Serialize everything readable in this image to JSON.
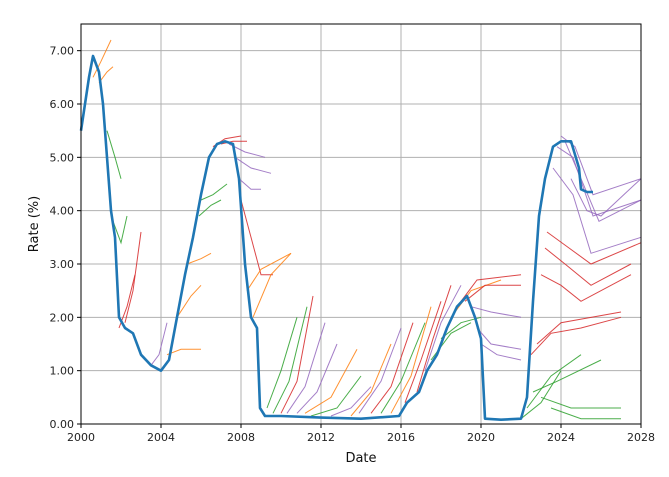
{
  "chart_data": {
    "type": "line",
    "title": "",
    "xlabel": "Date",
    "ylabel": "Rate (%)",
    "xlim": [
      2000,
      2028
    ],
    "ylim": [
      0,
      7.5
    ],
    "grid": true,
    "x_ticks": [
      2000,
      2004,
      2008,
      2012,
      2016,
      2020,
      2024,
      2028
    ],
    "x_tick_labels": [
      "2000",
      "2004",
      "2008",
      "2012",
      "2016",
      "2020",
      "2024",
      "2028"
    ],
    "y_ticks": [
      0,
      1,
      2,
      3,
      4,
      5,
      6,
      7
    ],
    "y_tick_labels": [
      "0.00",
      "1.00",
      "2.00",
      "3.00",
      "4.00",
      "5.00",
      "6.00",
      "7.00"
    ],
    "colors": {
      "main": "#1f77b4",
      "orange": "#ff7f0e",
      "green": "#2ca02c",
      "red": "#d62728",
      "purple": "#9467bd",
      "grid": "#b0b0b0"
    },
    "main_series": {
      "name": "Rate",
      "points": [
        [
          2000.0,
          5.5
        ],
        [
          2000.2,
          6.0
        ],
        [
          2000.4,
          6.5
        ],
        [
          2000.6,
          6.9
        ],
        [
          2000.9,
          6.6
        ],
        [
          2001.1,
          6.0
        ],
        [
          2001.3,
          5.0
        ],
        [
          2001.5,
          4.0
        ],
        [
          2001.7,
          3.5
        ],
        [
          2001.9,
          2.0
        ],
        [
          2002.2,
          1.8
        ],
        [
          2002.6,
          1.7
        ],
        [
          2003.0,
          1.3
        ],
        [
          2003.5,
          1.1
        ],
        [
          2004.0,
          1.0
        ],
        [
          2004.4,
          1.2
        ],
        [
          2004.8,
          2.0
        ],
        [
          2005.2,
          2.8
        ],
        [
          2005.6,
          3.5
        ],
        [
          2006.0,
          4.3
        ],
        [
          2006.4,
          5.0
        ],
        [
          2006.8,
          5.25
        ],
        [
          2007.2,
          5.3
        ],
        [
          2007.6,
          5.25
        ],
        [
          2007.9,
          4.6
        ],
        [
          2008.2,
          3.0
        ],
        [
          2008.5,
          2.0
        ],
        [
          2008.8,
          1.8
        ],
        [
          2008.95,
          0.3
        ],
        [
          2009.2,
          0.15
        ],
        [
          2010.0,
          0.15
        ],
        [
          2012.0,
          0.12
        ],
        [
          2014.0,
          0.1
        ],
        [
          2015.9,
          0.15
        ],
        [
          2016.3,
          0.4
        ],
        [
          2016.9,
          0.6
        ],
        [
          2017.3,
          1.0
        ],
        [
          2017.8,
          1.3
        ],
        [
          2018.3,
          1.8
        ],
        [
          2018.8,
          2.2
        ],
        [
          2019.3,
          2.4
        ],
        [
          2019.7,
          2.0
        ],
        [
          2020.0,
          1.6
        ],
        [
          2020.2,
          0.1
        ],
        [
          2021.0,
          0.08
        ],
        [
          2022.0,
          0.1
        ],
        [
          2022.3,
          0.5
        ],
        [
          2022.6,
          2.3
        ],
        [
          2022.9,
          3.9
        ],
        [
          2023.2,
          4.6
        ],
        [
          2023.6,
          5.2
        ],
        [
          2024.0,
          5.3
        ],
        [
          2024.5,
          5.3
        ],
        [
          2024.9,
          4.8
        ],
        [
          2025.0,
          4.4
        ],
        [
          2025.3,
          4.35
        ],
        [
          2025.6,
          4.35
        ]
      ]
    },
    "forecast_series": [
      {
        "color": "orange",
        "points": [
          [
            2000.6,
            6.5
          ],
          [
            2001.0,
            6.8
          ],
          [
            2001.5,
            7.2
          ]
        ]
      },
      {
        "color": "orange",
        "points": [
          [
            2000.9,
            6.4
          ],
          [
            2001.3,
            6.6
          ],
          [
            2001.6,
            6.7
          ]
        ]
      },
      {
        "color": "green",
        "points": [
          [
            2001.3,
            5.5
          ],
          [
            2001.7,
            5.0
          ],
          [
            2002.0,
            4.6
          ]
        ]
      },
      {
        "color": "green",
        "points": [
          [
            2001.6,
            3.8
          ],
          [
            2002.0,
            3.4
          ],
          [
            2002.3,
            3.9
          ]
        ]
      },
      {
        "color": "red",
        "points": [
          [
            2001.9,
            1.8
          ],
          [
            2002.3,
            2.2
          ],
          [
            2002.7,
            2.8
          ]
        ]
      },
      {
        "color": "red",
        "points": [
          [
            2002.2,
            1.9
          ],
          [
            2002.6,
            2.5
          ],
          [
            2003.0,
            3.6
          ]
        ]
      },
      {
        "color": "purple",
        "points": [
          [
            2003.5,
            1.1
          ],
          [
            2003.9,
            1.3
          ],
          [
            2004.3,
            1.9
          ]
        ]
      },
      {
        "color": "orange",
        "points": [
          [
            2004.3,
            1.3
          ],
          [
            2005.0,
            1.4
          ],
          [
            2006.0,
            1.4
          ]
        ]
      },
      {
        "color": "orange",
        "points": [
          [
            2004.8,
            2.0
          ],
          [
            2005.5,
            2.4
          ],
          [
            2006.0,
            2.6
          ]
        ]
      },
      {
        "color": "orange",
        "points": [
          [
            2005.3,
            3.0
          ],
          [
            2006.0,
            3.1
          ],
          [
            2006.5,
            3.2
          ]
        ]
      },
      {
        "color": "green",
        "points": [
          [
            2005.9,
            3.9
          ],
          [
            2006.5,
            4.1
          ],
          [
            2007.0,
            4.2
          ]
        ]
      },
      {
        "color": "green",
        "points": [
          [
            2006.0,
            4.2
          ],
          [
            2006.6,
            4.3
          ],
          [
            2007.3,
            4.5
          ]
        ]
      },
      {
        "color": "red",
        "points": [
          [
            2006.6,
            5.2
          ],
          [
            2007.2,
            5.35
          ],
          [
            2008.0,
            5.4
          ]
        ]
      },
      {
        "color": "red",
        "points": [
          [
            2007.0,
            5.25
          ],
          [
            2007.6,
            5.3
          ],
          [
            2008.3,
            5.3
          ]
        ]
      },
      {
        "color": "purple",
        "points": [
          [
            2007.4,
            5.25
          ],
          [
            2008.2,
            5.1
          ],
          [
            2009.2,
            5.0
          ]
        ]
      },
      {
        "color": "purple",
        "points": [
          [
            2007.7,
            5.0
          ],
          [
            2008.5,
            4.8
          ],
          [
            2009.5,
            4.7
          ]
        ]
      },
      {
        "color": "purple",
        "points": [
          [
            2007.9,
            4.6
          ],
          [
            2008.5,
            4.4
          ],
          [
            2009.0,
            4.4
          ]
        ]
      },
      {
        "color": "red",
        "points": [
          [
            2008.0,
            4.2
          ],
          [
            2008.5,
            3.5
          ],
          [
            2009.0,
            2.8
          ],
          [
            2009.6,
            2.8
          ]
        ]
      },
      {
        "color": "orange",
        "points": [
          [
            2008.3,
            2.5
          ],
          [
            2009.0,
            2.9
          ],
          [
            2010.5,
            3.2
          ]
        ]
      },
      {
        "color": "orange",
        "points": [
          [
            2008.6,
            2.0
          ],
          [
            2009.5,
            2.8
          ],
          [
            2010.5,
            3.2
          ]
        ]
      },
      {
        "color": "green",
        "points": [
          [
            2009.3,
            0.3
          ],
          [
            2010.0,
            1.0
          ],
          [
            2010.8,
            2.0
          ]
        ]
      },
      {
        "color": "green",
        "points": [
          [
            2009.6,
            0.2
          ],
          [
            2010.4,
            0.8
          ],
          [
            2011.3,
            2.2
          ]
        ]
      },
      {
        "color": "red",
        "points": [
          [
            2010.0,
            0.2
          ],
          [
            2010.8,
            0.8
          ],
          [
            2011.6,
            2.4
          ]
        ]
      },
      {
        "color": "purple",
        "points": [
          [
            2010.3,
            0.2
          ],
          [
            2011.2,
            0.7
          ],
          [
            2012.2,
            1.9
          ]
        ]
      },
      {
        "color": "purple",
        "points": [
          [
            2010.8,
            0.2
          ],
          [
            2011.8,
            0.6
          ],
          [
            2012.8,
            1.5
          ]
        ]
      },
      {
        "color": "orange",
        "points": [
          [
            2011.2,
            0.2
          ],
          [
            2012.5,
            0.5
          ],
          [
            2013.8,
            1.4
          ]
        ]
      },
      {
        "color": "green",
        "points": [
          [
            2011.5,
            0.15
          ],
          [
            2012.8,
            0.3
          ],
          [
            2014.0,
            0.9
          ]
        ]
      },
      {
        "color": "purple",
        "points": [
          [
            2012.5,
            0.15
          ],
          [
            2013.5,
            0.3
          ],
          [
            2014.5,
            0.7
          ]
        ]
      },
      {
        "color": "orange",
        "points": [
          [
            2013.5,
            0.15
          ],
          [
            2014.5,
            0.6
          ],
          [
            2015.5,
            1.5
          ]
        ]
      },
      {
        "color": "purple",
        "points": [
          [
            2013.9,
            0.2
          ],
          [
            2015.0,
            0.8
          ],
          [
            2016.0,
            1.8
          ]
        ]
      },
      {
        "color": "red",
        "points": [
          [
            2014.5,
            0.2
          ],
          [
            2015.5,
            0.7
          ],
          [
            2016.6,
            1.9
          ]
        ]
      },
      {
        "color": "green",
        "points": [
          [
            2015.0,
            0.2
          ],
          [
            2016.0,
            0.8
          ],
          [
            2017.2,
            1.9
          ]
        ]
      },
      {
        "color": "orange",
        "points": [
          [
            2015.5,
            0.2
          ],
          [
            2016.5,
            0.9
          ],
          [
            2017.5,
            2.2
          ]
        ]
      },
      {
        "color": "red",
        "points": [
          [
            2016.2,
            0.4
          ],
          [
            2017.0,
            1.2
          ],
          [
            2018.0,
            2.3
          ]
        ]
      },
      {
        "color": "red",
        "points": [
          [
            2016.8,
            0.6
          ],
          [
            2017.6,
            1.6
          ],
          [
            2018.5,
            2.6
          ]
        ]
      },
      {
        "color": "purple",
        "points": [
          [
            2017.2,
            1.0
          ],
          [
            2018.0,
            1.9
          ],
          [
            2019.0,
            2.6
          ]
        ]
      },
      {
        "color": "green",
        "points": [
          [
            2017.5,
            1.2
          ],
          [
            2018.5,
            1.7
          ],
          [
            2019.5,
            1.9
          ]
        ]
      },
      {
        "color": "green",
        "points": [
          [
            2018.0,
            1.6
          ],
          [
            2019.0,
            1.9
          ],
          [
            2020.0,
            2.0
          ]
        ]
      },
      {
        "color": "orange",
        "points": [
          [
            2018.5,
            2.0
          ],
          [
            2019.5,
            2.5
          ],
          [
            2021.0,
            2.7
          ]
        ]
      },
      {
        "color": "red",
        "points": [
          [
            2018.8,
            2.2
          ],
          [
            2019.8,
            2.7
          ],
          [
            2022.0,
            2.8
          ]
        ]
      },
      {
        "color": "red",
        "points": [
          [
            2019.2,
            2.3
          ],
          [
            2020.2,
            2.6
          ],
          [
            2022.0,
            2.6
          ]
        ]
      },
      {
        "color": "purple",
        "points": [
          [
            2019.5,
            2.2
          ],
          [
            2020.5,
            2.1
          ],
          [
            2022.0,
            2.0
          ]
        ]
      },
      {
        "color": "purple",
        "points": [
          [
            2019.8,
            1.8
          ],
          [
            2020.5,
            1.5
          ],
          [
            2022.0,
            1.4
          ]
        ]
      },
      {
        "color": "purple",
        "points": [
          [
            2020.0,
            1.5
          ],
          [
            2020.8,
            1.3
          ],
          [
            2022.0,
            1.2
          ]
        ]
      },
      {
        "color": "green",
        "points": [
          [
            2022.0,
            0.1
          ],
          [
            2023.0,
            0.4
          ],
          [
            2024.0,
            1.0
          ]
        ]
      },
      {
        "color": "green",
        "points": [
          [
            2022.3,
            0.3
          ],
          [
            2023.5,
            0.9
          ],
          [
            2025.0,
            1.3
          ]
        ]
      },
      {
        "color": "green",
        "points": [
          [
            2022.6,
            0.6
          ],
          [
            2023.8,
            0.8
          ],
          [
            2026.0,
            1.2
          ]
        ]
      },
      {
        "color": "green",
        "points": [
          [
            2023.0,
            0.5
          ],
          [
            2024.5,
            0.3
          ],
          [
            2027.0,
            0.3
          ]
        ]
      },
      {
        "color": "green",
        "points": [
          [
            2023.5,
            0.3
          ],
          [
            2025.0,
            0.1
          ],
          [
            2027.0,
            0.1
          ]
        ]
      },
      {
        "color": "red",
        "points": [
          [
            2022.5,
            1.3
          ],
          [
            2023.5,
            1.7
          ],
          [
            2025.0,
            1.8
          ],
          [
            2027.0,
            2.0
          ]
        ]
      },
      {
        "color": "red",
        "points": [
          [
            2022.8,
            1.5
          ],
          [
            2024.0,
            1.9
          ],
          [
            2027.0,
            2.1
          ]
        ]
      },
      {
        "color": "red",
        "points": [
          [
            2023.0,
            2.8
          ],
          [
            2024.0,
            2.6
          ],
          [
            2025.0,
            2.3
          ],
          [
            2027.5,
            2.8
          ]
        ]
      },
      {
        "color": "red",
        "points": [
          [
            2023.2,
            3.3
          ],
          [
            2024.2,
            3.0
          ],
          [
            2025.5,
            2.6
          ],
          [
            2027.5,
            3.0
          ]
        ]
      },
      {
        "color": "red",
        "points": [
          [
            2023.3,
            3.6
          ],
          [
            2024.4,
            3.3
          ],
          [
            2025.5,
            3.0
          ],
          [
            2028.0,
            3.4
          ]
        ]
      },
      {
        "color": "purple",
        "points": [
          [
            2023.6,
            4.8
          ],
          [
            2024.6,
            4.3
          ],
          [
            2025.5,
            3.2
          ],
          [
            2028.0,
            3.5
          ]
        ]
      },
      {
        "color": "purple",
        "points": [
          [
            2023.8,
            5.2
          ],
          [
            2024.6,
            5.0
          ],
          [
            2025.6,
            3.9
          ],
          [
            2028.0,
            4.2
          ]
        ]
      },
      {
        "color": "purple",
        "points": [
          [
            2024.0,
            5.4
          ],
          [
            2024.7,
            5.2
          ],
          [
            2025.6,
            4.3
          ],
          [
            2028.0,
            4.6
          ]
        ]
      },
      {
        "color": "purple",
        "points": [
          [
            2024.2,
            5.3
          ],
          [
            2025.0,
            4.6
          ],
          [
            2025.9,
            3.8
          ],
          [
            2028.0,
            4.2
          ]
        ]
      },
      {
        "color": "purple",
        "points": [
          [
            2024.5,
            4.6
          ],
          [
            2025.3,
            4.0
          ],
          [
            2026.0,
            3.9
          ],
          [
            2028.0,
            4.6
          ]
        ]
      }
    ]
  }
}
